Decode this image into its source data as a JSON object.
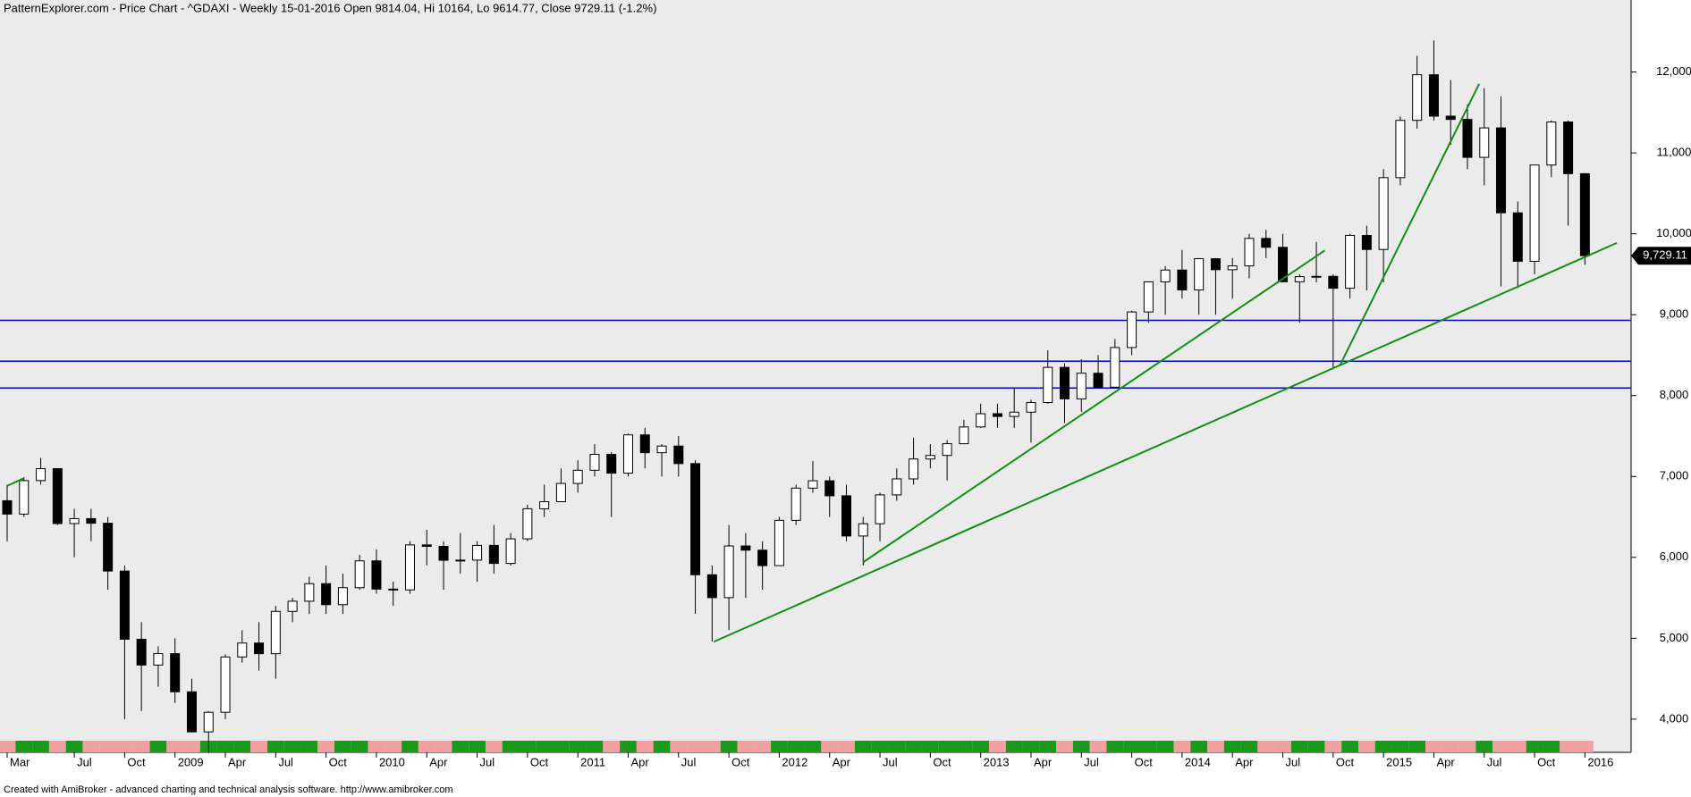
{
  "chart_data": {
    "type": "candlestick",
    "title": "PatternExplorer.com - Price Chart - ^GDAXI - Weekly 15-01-2016 Open 9814.04, Hi 10164, Lo 9614.77, Close 9729.11 (-1.2%)",
    "footer": "Created with AmiBroker - advanced charting and technical analysis software. http://www.amibroker.com",
    "last_label": "9,729.11",
    "categories": [
      "Mar",
      null,
      null,
      null,
      "Jul",
      null,
      null,
      "Oct",
      null,
      null,
      "2009",
      null,
      null,
      "Apr",
      null,
      null,
      "Jul",
      null,
      null,
      "Oct",
      null,
      null,
      "2010",
      null,
      null,
      "Apr",
      null,
      null,
      "Jul",
      null,
      null,
      "Oct",
      null,
      null,
      "2011",
      null,
      null,
      "Apr",
      null,
      null,
      "Jul",
      null,
      null,
      "Oct",
      null,
      null,
      "2012",
      null,
      null,
      "Apr",
      null,
      null,
      "Jul",
      null,
      null,
      "Oct",
      null,
      null,
      "2013",
      null,
      null,
      "Apr",
      null,
      null,
      "Jul",
      null,
      null,
      "Oct",
      null,
      null,
      "2014",
      null,
      null,
      "Apr",
      null,
      null,
      "Jul",
      null,
      null,
      "Oct",
      null,
      null,
      "2015",
      null,
      null,
      "Apr",
      null,
      null,
      "Jul",
      null,
      null,
      "Oct",
      null,
      null,
      "2016"
    ],
    "open": [
      6700,
      6535,
      6949,
      7097,
      6418,
      6479,
      6422,
      5831,
      4988,
      4669,
      4810,
      4338,
      3843,
      4085,
      4769,
      4941,
      4809,
      5332,
      5458,
      5675,
      5415,
      5625,
      5957,
      5608,
      5598,
      6154,
      6136,
      5964,
      5966,
      6148,
      5925,
      6229,
      6601,
      6688,
      6914,
      7077,
      7273,
      7041,
      7514,
      7294,
      7376,
      7159,
      5785,
      5502,
      6141,
      6089,
      5898,
      6458,
      6856,
      6947,
      6761,
      6264,
      6416,
      6772,
      6970,
      7216,
      7260,
      7405,
      7612,
      7776,
      7742,
      7795,
      7914,
      8349,
      7959,
      8276,
      8104,
      8594,
      9034,
      9406,
      9552,
      9306,
      9692,
      9556,
      9603,
      9943,
      9833,
      9407,
      9470,
      9474,
      9327,
      9980,
      9806,
      10694,
      11402,
      11966,
      11454,
      11414,
      10945,
      11309,
      10259,
      9660,
      10850,
      11382,
      10743
    ],
    "high": [
      6900,
      6990,
      7230,
      7100,
      6600,
      6600,
      6500,
      5900,
      5200,
      4900,
      5000,
      4500,
      4100,
      4800,
      5100,
      5200,
      5400,
      5500,
      5760,
      5900,
      5800,
      6030,
      6100,
      5700,
      6200,
      6340,
      6200,
      6300,
      6200,
      6400,
      6300,
      6650,
      6900,
      7100,
      7200,
      7400,
      7300,
      7530,
      7600,
      7400,
      7500,
      7200,
      5900,
      6400,
      6300,
      6200,
      6500,
      6900,
      7190,
      7000,
      6900,
      6500,
      6800,
      7100,
      7480,
      7400,
      7450,
      7700,
      7900,
      7900,
      8100,
      7950,
      8560,
      8400,
      8450,
      8500,
      8700,
      9050,
      9400,
      9600,
      9800,
      9700,
      9700,
      9700,
      10000,
      10050,
      10000,
      9500,
      9900,
      9500,
      10000,
      10100,
      10800,
      11450,
      12200,
      12390,
      11900,
      11600,
      11800,
      11700,
      10400,
      10850,
      11400,
      11400,
      10750
    ],
    "low": [
      6200,
      6500,
      6900,
      6400,
      6000,
      6200,
      5600,
      4000,
      4100,
      4400,
      4200,
      3900,
      3590,
      4000,
      4700,
      4600,
      4500,
      5200,
      5300,
      5300,
      5300,
      5600,
      5550,
      5400,
      5550,
      5900,
      5600,
      5800,
      5700,
      5800,
      5900,
      6200,
      6500,
      6700,
      6800,
      7000,
      6500,
      7000,
      7100,
      7000,
      7000,
      5300,
      4960,
      5100,
      5500,
      5600,
      5900,
      6400,
      6800,
      6500,
      6200,
      5900,
      6200,
      6700,
      6900,
      7100,
      6950,
      7400,
      7600,
      7600,
      7600,
      7420,
      7900,
      7660,
      7800,
      8100,
      8100,
      8500,
      8900,
      9000,
      9200,
      9000,
      9000,
      9200,
      9450,
      9700,
      9400,
      8900,
      9400,
      8350,
      9200,
      9300,
      9400,
      10600,
      11300,
      11400,
      11100,
      10800,
      10600,
      9350,
      9330,
      9500,
      10700,
      10100,
      9615
    ],
    "close": [
      6535,
      6949,
      7097,
      6418,
      6479,
      6422,
      5831,
      4988,
      4669,
      4810,
      4338,
      3843,
      4085,
      4769,
      4941,
      4809,
      5332,
      5458,
      5675,
      5415,
      5625,
      5957,
      5608,
      5598,
      6154,
      6136,
      5964,
      5966,
      6148,
      5925,
      6229,
      6601,
      6688,
      6914,
      7077,
      7273,
      7041,
      7514,
      7294,
      7376,
      7159,
      5785,
      5502,
      6141,
      6089,
      5898,
      6458,
      6856,
      6947,
      6761,
      6264,
      6416,
      6772,
      6970,
      7216,
      7260,
      7405,
      7612,
      7776,
      7742,
      7795,
      7914,
      8349,
      7959,
      8276,
      8104,
      8594,
      9034,
      9406,
      9552,
      9306,
      9692,
      9556,
      9603,
      9943,
      9833,
      9407,
      9470,
      9474,
      9327,
      9980,
      9806,
      10694,
      11402,
      11966,
      11454,
      11414,
      10945,
      11309,
      10259,
      9660,
      10850,
      11382,
      10743,
      9729
    ],
    "hlines": [
      8930,
      8425,
      8093
    ],
    "hline_color": "#0000cc",
    "trendline_color": "#109010",
    "trendlines": [
      {
        "x": [
          42.1,
          95.9
        ],
        "y": [
          4957,
          9887
        ]
      },
      {
        "x": [
          51,
          78.5
        ],
        "y": [
          5940,
          9794
        ]
      },
      {
        "x": [
          79.4,
          87.7
        ],
        "y": [
          8372,
          11854
        ]
      },
      {
        "x": [
          0,
          1
        ],
        "y": [
          6884,
          6977
        ]
      }
    ],
    "ylim": [
      3590,
      12890
    ],
    "yticks": [
      {
        "value": 4000,
        "label": "4,000"
      },
      {
        "value": 5000,
        "label": "5,000"
      },
      {
        "value": 6000,
        "label": "6,000"
      },
      {
        "value": 7000,
        "label": "7,000"
      },
      {
        "value": 8000,
        "label": "8,000"
      },
      {
        "value": 9000,
        "label": "9,000"
      },
      {
        "value": 10000,
        "label": "10,000"
      },
      {
        "value": 11000,
        "label": "11,000"
      },
      {
        "value": 12000,
        "label": "12,000"
      }
    ]
  }
}
